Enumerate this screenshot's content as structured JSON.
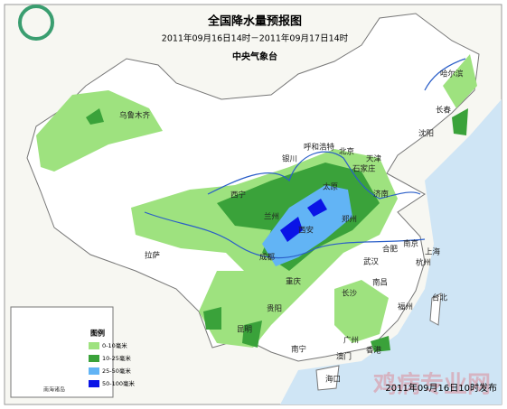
{
  "header": {
    "title": "全国降水量预报图",
    "subtitle": "2011年09月16日14时－2011年09月17日14时",
    "issuer": "中央气象台"
  },
  "cities": [
    "乌鲁木齐",
    "哈尔滨",
    "长春",
    "沈阳",
    "呼和浩特",
    "北京",
    "天津",
    "石家庄",
    "太原",
    "济南",
    "银川",
    "西宁",
    "兰州",
    "西安",
    "郑州",
    "合肥",
    "南京",
    "上海",
    "杭州",
    "武汉",
    "成都",
    "重庆",
    "拉萨",
    "贵阳",
    "长沙",
    "南昌",
    "福州",
    "台北",
    "昆明",
    "南宁",
    "广州",
    "香港",
    "澳门",
    "海口"
  ],
  "legend": {
    "title": "图例",
    "items": [
      {
        "label": "0-10毫米",
        "color": "#9ee27f"
      },
      {
        "label": "10-25毫米",
        "color": "#3aa23a"
      },
      {
        "label": "25-50毫米",
        "color": "#62b4f5"
      },
      {
        "label": "50-100毫米",
        "color": "#0a14e6"
      }
    ]
  },
  "inset_label": "南海诸岛",
  "footer": "2011年09月16日10时发布",
  "watermark": "鸡病专业网"
}
